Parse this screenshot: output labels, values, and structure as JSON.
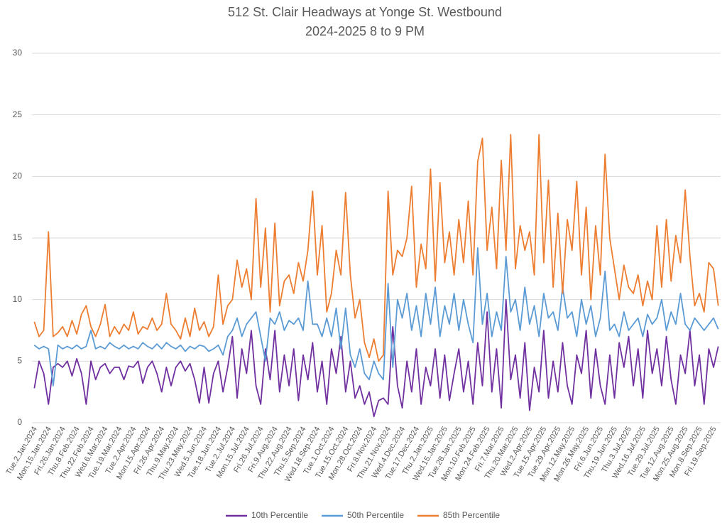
{
  "chart_data": {
    "type": "line",
    "title": "512 St. Clair Headways at Yonge St. Westbound",
    "subtitle": "2024-2025 8 to 9 PM",
    "categories": [
      "Tue.2.Jan.2024",
      null,
      null,
      "Mon.15.Jan.2024",
      null,
      null,
      "Fri.26.Jan.2024",
      null,
      null,
      "Thu.8.Feb.2024",
      null,
      null,
      "Thu.22.Feb.2024",
      null,
      null,
      "Wed.6.Mar.2024",
      null,
      null,
      "Tue.19.Mar.2024",
      null,
      null,
      "Tue.2.Apr.2024",
      null,
      null,
      "Mon.15.Apr.2024",
      null,
      null,
      "Fri.26.Apr.2024",
      null,
      null,
      "Thu.9.May.2024",
      null,
      null,
      "Thu.23.May.2024",
      null,
      null,
      "Wed.5.Jun.2024",
      null,
      null,
      "Tue.18.Jun.2024",
      null,
      null,
      "Tue.2.Jul.2024",
      null,
      null,
      "Mon.15.Jul.2024",
      null,
      null,
      "Fri.26.Jul.2024",
      null,
      null,
      "Fri.9.Aug.2024",
      null,
      null,
      "Thu.22.Aug.2024",
      null,
      null,
      "Thu.5.Sep.2024",
      null,
      null,
      "Wed.18.Sep.2024",
      null,
      null,
      "Tue.1.Oct.2024",
      null,
      null,
      "Tue.15.Oct.2024",
      null,
      null,
      "Mon.28.Oct.2024",
      null,
      null,
      "Fri.8.Nov.2024",
      null,
      null,
      "Thu.21.Nov.2024",
      null,
      null,
      "Wed.4.Dec.2024",
      null,
      null,
      "Tue.17.Dec.2024",
      null,
      null,
      "Thu.2.Jan.2025",
      null,
      null,
      "Wed.15.Jan.2025",
      null,
      null,
      "Tue.28.Jan.2025",
      null,
      null,
      "Mon.10.Feb.2025",
      null,
      null,
      "Mon.24.Feb.2025",
      null,
      null,
      "Fri.7.Mar.2025",
      null,
      null,
      "Thu.20.Mar.2025",
      null,
      null,
      "Wed.2.Apr.2025",
      null,
      null,
      "Tue.15.Apr.2025",
      null,
      null,
      "Tue.29.Apr.2025",
      null,
      null,
      "Mon.12.May.2025",
      null,
      null,
      "Mon.26.May.2025",
      null,
      null,
      "Fri.6.Jun.2025",
      null,
      null,
      "Thu.19.Jun.2025",
      null,
      null,
      "Thu.3.Jul.2025",
      null,
      null,
      "Wed.16.Jul.2025",
      null,
      null,
      "Tue.29.Jul.2025",
      null,
      null,
      "Tue.12.Aug.2025",
      null,
      null,
      "Mon.25.Aug.2025",
      null,
      null,
      "Mon.8.Sep.2025",
      null,
      null,
      "Fri.19.Sep.2025",
      null
    ],
    "series": [
      {
        "name": "10th Percentile",
        "color": "#7030a0",
        "values": [
          2.8,
          5.0,
          4.0,
          1.5,
          4.5,
          4.8,
          4.5,
          5.0,
          3.8,
          5.2,
          4.0,
          1.5,
          5.0,
          3.5,
          4.5,
          4.8,
          4.0,
          4.5,
          4.5,
          3.5,
          4.6,
          4.5,
          5.0,
          3.2,
          4.5,
          5.0,
          4.0,
          2.5,
          4.5,
          3.0,
          4.5,
          5.0,
          4.2,
          4.8,
          3.5,
          1.6,
          4.5,
          1.6,
          4.0,
          5.0,
          2.5,
          4.5,
          7.0,
          2.0,
          6.0,
          4.0,
          7.5,
          3.0,
          1.5,
          6.0,
          3.5,
          7.5,
          2.5,
          5.5,
          3.0,
          6.0,
          1.8,
          5.5,
          3.5,
          6.5,
          2.5,
          5.0,
          1.5,
          6.0,
          4.0,
          7.0,
          2.5,
          5.0,
          2.0,
          3.0,
          1.5,
          2.5,
          0.5,
          1.8,
          2.0,
          1.5,
          7.8,
          3.0,
          1.2,
          5.0,
          2.5,
          6.0,
          1.5,
          4.5,
          3.0,
          6.0,
          2.0,
          5.5,
          1.8,
          4.0,
          6.0,
          2.5,
          5.0,
          1.5,
          6.5,
          3.0,
          9.0,
          2.5,
          6.0,
          1.2,
          10.0,
          3.5,
          5.5,
          2.0,
          6.5,
          1.0,
          4.5,
          2.5,
          7.5,
          2.0,
          5.0,
          2.5,
          6.5,
          3.0,
          1.5,
          5.5,
          4.0,
          7.5,
          2.0,
          6.0,
          3.0,
          1.5,
          5.5,
          2.0,
          6.5,
          4.5,
          7.0,
          3.0,
          6.0,
          2.0,
          7.5,
          4.0,
          6.0,
          3.0,
          7.0,
          3.5,
          1.5,
          5.5,
          4.0,
          7.5,
          3.0,
          5.5,
          1.5,
          6.0,
          4.5,
          6.2
        ]
      },
      {
        "name": "50th Percentile",
        "color": "#5b9bd5",
        "values": [
          6.3,
          6.0,
          6.2,
          6.0,
          3.0,
          6.3,
          6.0,
          6.2,
          6.0,
          6.3,
          6.0,
          6.2,
          7.5,
          6.0,
          6.2,
          6.0,
          6.5,
          6.2,
          6.0,
          6.3,
          6.0,
          6.2,
          6.0,
          6.5,
          6.2,
          6.0,
          6.4,
          6.0,
          6.5,
          6.2,
          6.0,
          6.3,
          5.8,
          6.2,
          6.0,
          6.3,
          6.2,
          5.8,
          6.0,
          6.3,
          5.5,
          7.0,
          7.5,
          8.5,
          7.0,
          8.0,
          8.5,
          9.0,
          7.0,
          5.0,
          8.5,
          8.0,
          9.0,
          7.5,
          8.3,
          8.0,
          8.5,
          7.5,
          11.5,
          8.0,
          8.0,
          7.0,
          8.5,
          7.0,
          9.3,
          6.0,
          9.3,
          5.5,
          4.5,
          6.0,
          4.0,
          3.5,
          5.0,
          4.0,
          3.5,
          11.3,
          4.5,
          10.0,
          8.5,
          10.5,
          7.5,
          9.5,
          7.0,
          10.5,
          8.0,
          11.0,
          7.0,
          9.5,
          8.0,
          10.5,
          7.5,
          10.0,
          8.0,
          6.5,
          14.2,
          8.0,
          10.5,
          7.0,
          9.0,
          7.5,
          13.5,
          9.0,
          10.0,
          7.5,
          11.0,
          8.0,
          9.5,
          7.0,
          10.5,
          8.5,
          9.0,
          7.5,
          11.0,
          8.5,
          9.0,
          7.0,
          10.0,
          8.0,
          9.5,
          7.0,
          8.5,
          12.3,
          7.5,
          8.0,
          7.0,
          9.0,
          7.5,
          8.0,
          8.5,
          7.0,
          8.8,
          8.0,
          8.5,
          10.0,
          7.5,
          9.0,
          8.0,
          10.5,
          8.0,
          7.5,
          8.5,
          8.0,
          7.5,
          8.0,
          8.5,
          7.6
        ]
      },
      {
        "name": "85th Percentile",
        "color": "#ed7d31",
        "values": [
          8.2,
          7.0,
          7.5,
          15.5,
          7.0,
          7.3,
          7.8,
          7.0,
          8.3,
          7.2,
          8.8,
          9.5,
          7.8,
          7.0,
          8.0,
          9.6,
          7.0,
          7.8,
          7.2,
          8.0,
          7.5,
          9.0,
          7.2,
          7.8,
          7.6,
          8.5,
          7.5,
          8.0,
          10.5,
          8.0,
          7.5,
          6.8,
          8.5,
          7.0,
          9.3,
          7.5,
          8.2,
          7.0,
          7.8,
          12.0,
          8.0,
          9.5,
          10.0,
          13.2,
          11.0,
          12.5,
          10.0,
          18.2,
          11.0,
          15.8,
          9.0,
          16.2,
          9.5,
          11.5,
          12.0,
          10.5,
          13.0,
          11.5,
          14.0,
          18.8,
          12.0,
          16.0,
          9.0,
          10.5,
          14.0,
          12.0,
          18.7,
          12.0,
          8.5,
          10.0,
          6.5,
          5.3,
          6.8,
          5.0,
          5.5,
          18.8,
          12.0,
          14.0,
          13.5,
          15.0,
          19.2,
          11.0,
          14.5,
          12.5,
          20.6,
          11.5,
          19.5,
          13.0,
          15.5,
          12.0,
          16.5,
          13.0,
          18.0,
          12.0,
          21.2,
          23.1,
          14.0,
          17.5,
          12.5,
          21.3,
          14.0,
          23.4,
          12.5,
          16.0,
          14.0,
          15.5,
          12.0,
          23.4,
          13.0,
          19.7,
          11.0,
          17.0,
          10.5,
          16.5,
          14.0,
          19.6,
          12.0,
          17.5,
          10.0,
          16.0,
          12.0,
          21.8,
          15.0,
          12.5,
          10.0,
          12.8,
          11.0,
          10.5,
          12.0,
          9.5,
          11.5,
          10.0,
          16.0,
          11.0,
          16.5,
          11.5,
          15.2,
          13.0,
          18.9,
          13.5,
          9.5,
          10.5,
          9.0,
          13.0,
          12.5,
          9.5
        ]
      }
    ],
    "ylim": [
      0,
      30
    ],
    "yticks": [
      0,
      5,
      10,
      15,
      20,
      25,
      30
    ],
    "grid": true,
    "legend": "bottom"
  }
}
